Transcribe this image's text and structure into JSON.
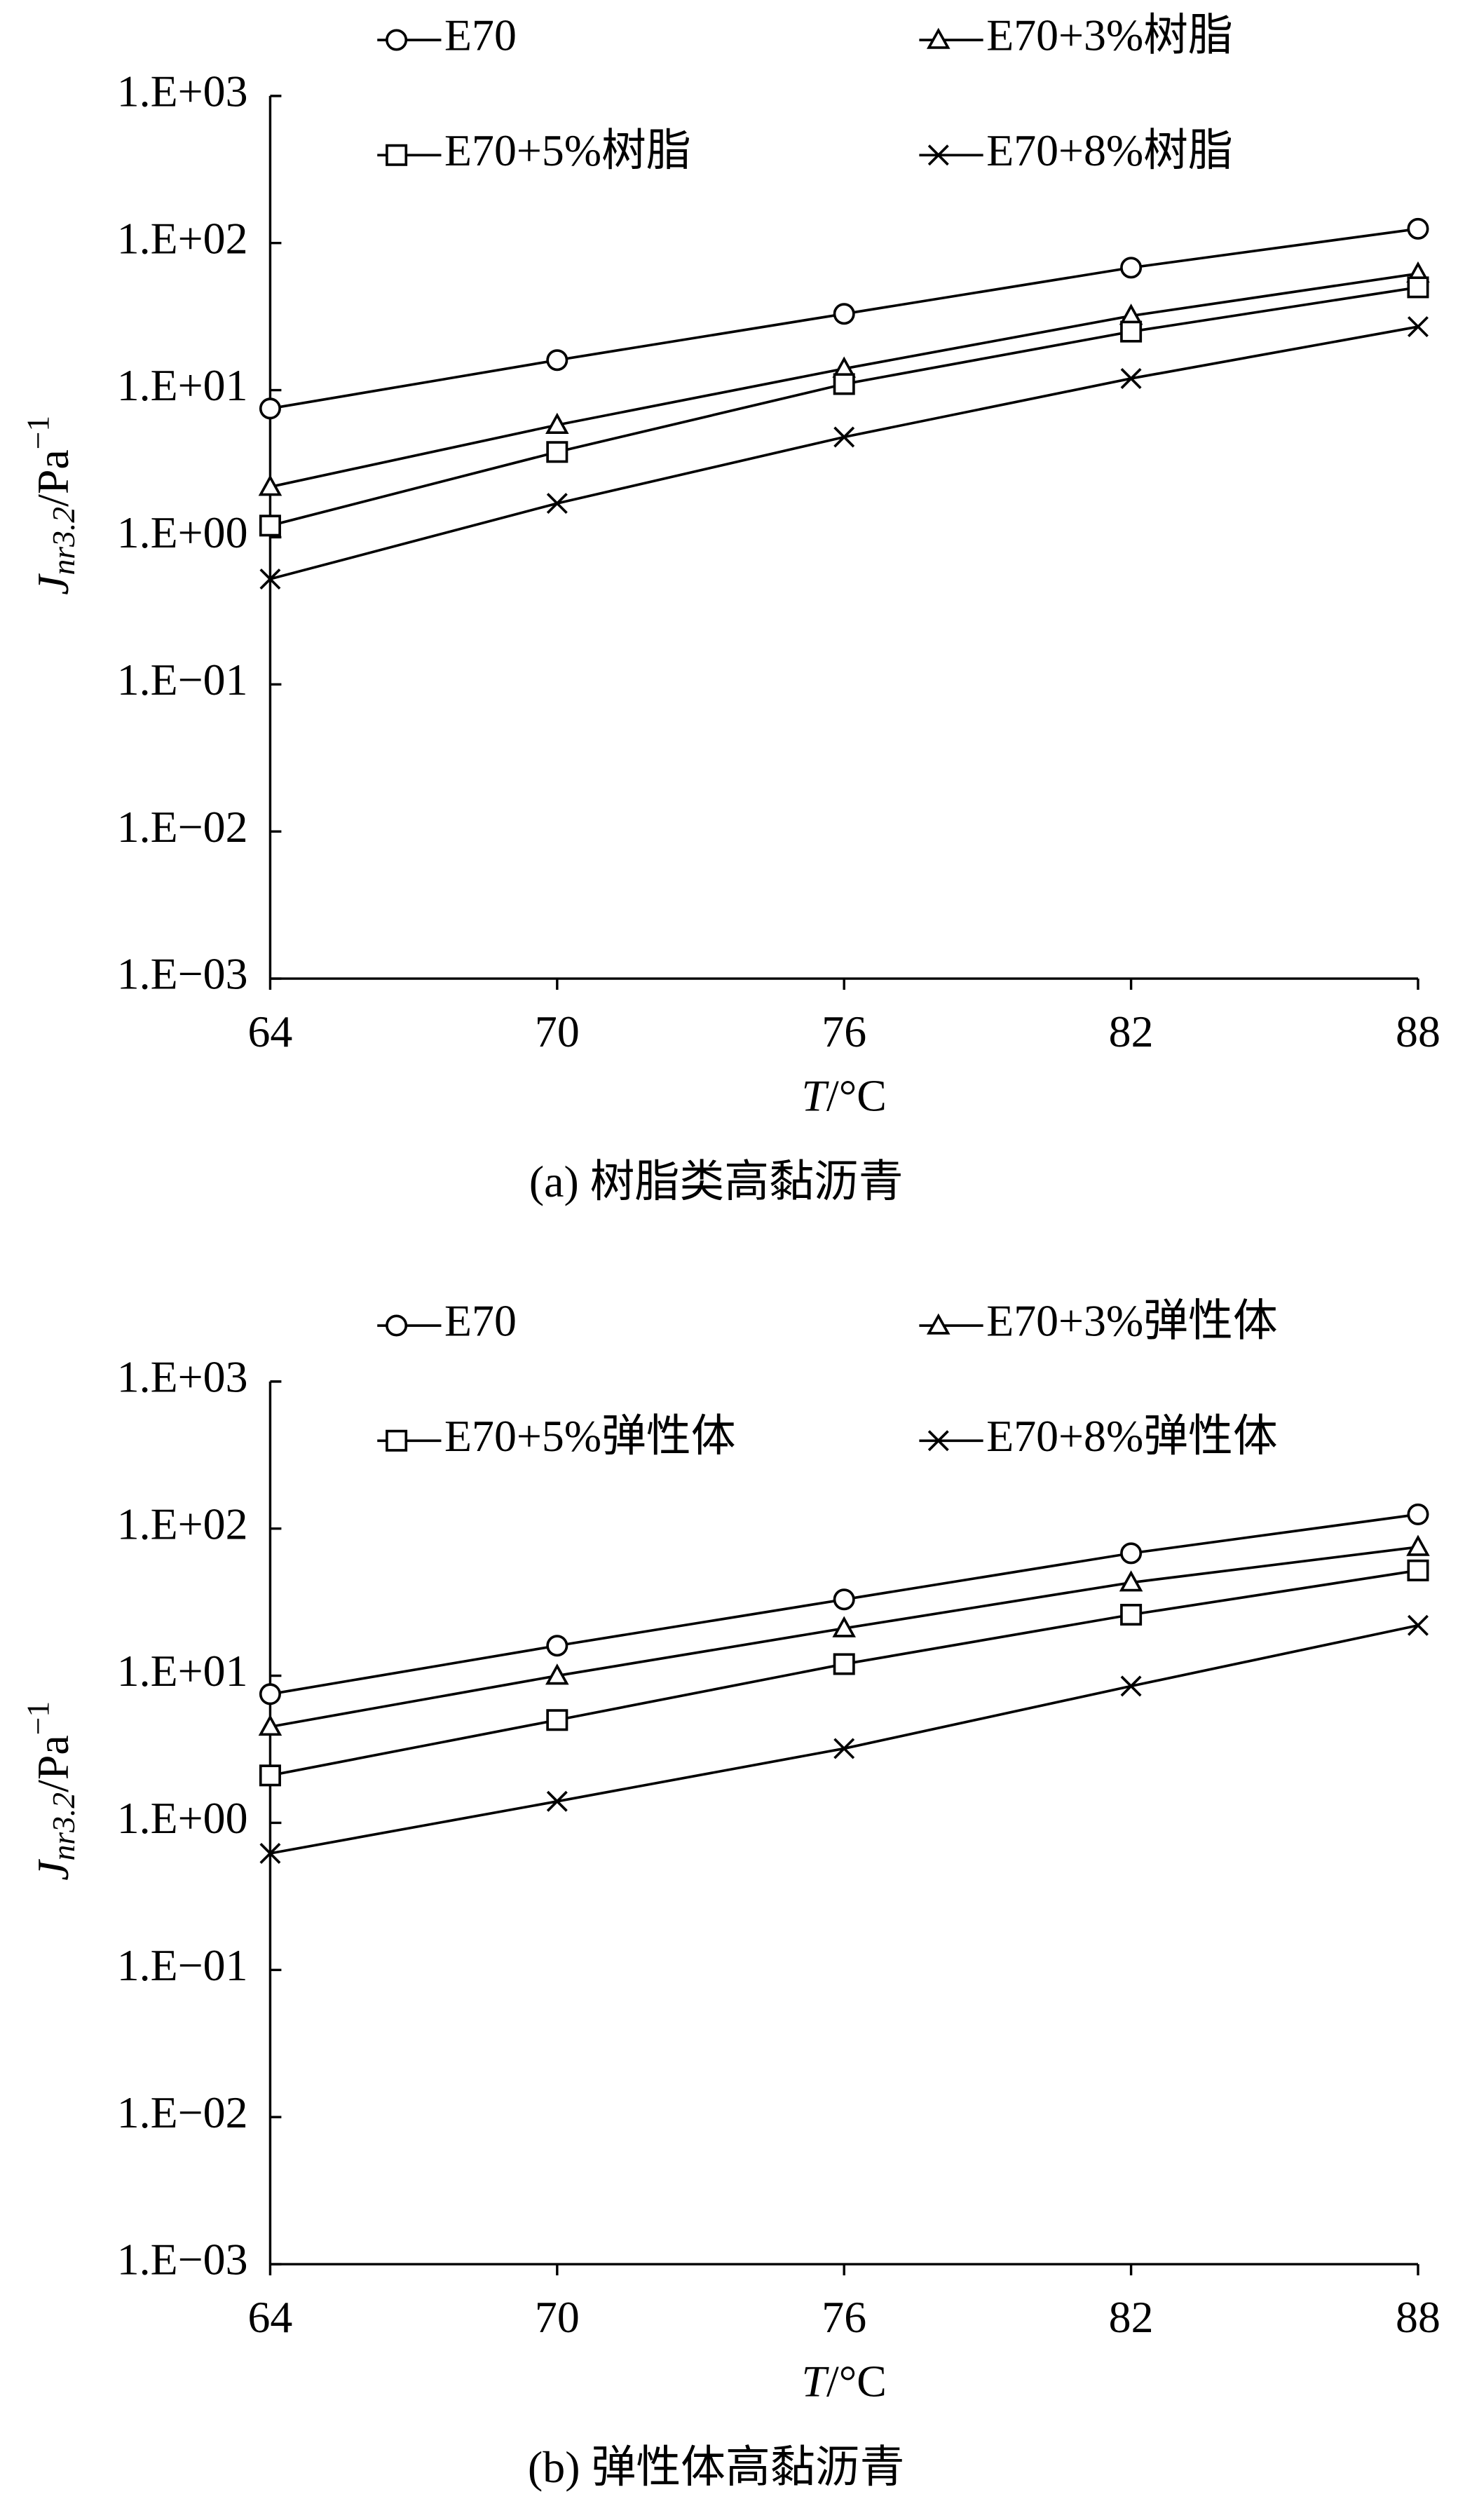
{
  "chart_data": [
    {
      "type": "line",
      "log_y": true,
      "y_label": [
        "J",
        "nr3.2",
        "/Pa",
        "−1"
      ],
      "x_label": [
        "T",
        "/°C"
      ],
      "caption": "(a)  树脂类高黏沥青",
      "x": [
        64,
        70,
        76,
        82,
        88
      ],
      "xlim": [
        64,
        88
      ],
      "xticks": [
        64,
        70,
        76,
        82,
        88
      ],
      "ylim": [
        0.001,
        1000
      ],
      "yticks": [
        {
          "value": 0.001,
          "label": "1.E−03"
        },
        {
          "value": 0.01,
          "label": "1.E−02"
        },
        {
          "value": 0.1,
          "label": "1.E−01"
        },
        {
          "value": 1,
          "label": "1.E+00"
        },
        {
          "value": 10,
          "label": "1.E+01"
        },
        {
          "value": 100,
          "label": "1.E+02"
        },
        {
          "value": 1000,
          "label": "1.E+03"
        }
      ],
      "series": [
        {
          "name": "E70",
          "color": "#000000",
          "marker": "circle",
          "values": [
            7.5,
            16,
            33,
            68,
            125
          ]
        },
        {
          "name": "E70+3%树脂",
          "color": "#000000",
          "marker": "triangle",
          "values": [
            2.2,
            5.8,
            14,
            32,
            62
          ]
        },
        {
          "name": "E70+5%树脂",
          "color": "#000000",
          "marker": "square",
          "values": [
            1.2,
            3.8,
            11,
            25,
            50
          ]
        },
        {
          "name": "E70+8%树脂",
          "color": "#000000",
          "marker": "x",
          "values": [
            0.52,
            1.7,
            4.8,
            12,
            27
          ]
        }
      ]
    },
    {
      "type": "line",
      "log_y": true,
      "y_label": [
        "J",
        "nr3.2",
        "/Pa",
        "−1"
      ],
      "x_label": [
        "T",
        "/°C"
      ],
      "caption": "(b)  弹性体高黏沥青",
      "x": [
        64,
        70,
        76,
        82,
        88
      ],
      "xlim": [
        64,
        88
      ],
      "xticks": [
        64,
        70,
        76,
        82,
        88
      ],
      "ylim": [
        0.001,
        1000
      ],
      "yticks": [
        {
          "value": 0.001,
          "label": "1.E−03"
        },
        {
          "value": 0.01,
          "label": "1.E−02"
        },
        {
          "value": 0.1,
          "label": "1.E−01"
        },
        {
          "value": 1,
          "label": "1.E+00"
        },
        {
          "value": 10,
          "label": "1.E+01"
        },
        {
          "value": 100,
          "label": "1.E+02"
        },
        {
          "value": 1000,
          "label": "1.E+03"
        }
      ],
      "series": [
        {
          "name": "E70",
          "color": "#000000",
          "marker": "circle",
          "values": [
            7.5,
            16,
            33,
            68,
            125
          ]
        },
        {
          "name": "E70+3%弹性体",
          "color": "#000000",
          "marker": "triangle",
          "values": [
            4.5,
            10,
            21,
            43,
            75
          ]
        },
        {
          "name": "E70+5%弹性体",
          "color": "#000000",
          "marker": "square",
          "values": [
            2.1,
            5,
            12,
            26,
            52
          ]
        },
        {
          "name": "E70+8%弹性体",
          "color": "#000000",
          "marker": "x",
          "values": [
            0.62,
            1.4,
            3.2,
            8.5,
            22
          ]
        }
      ]
    }
  ]
}
